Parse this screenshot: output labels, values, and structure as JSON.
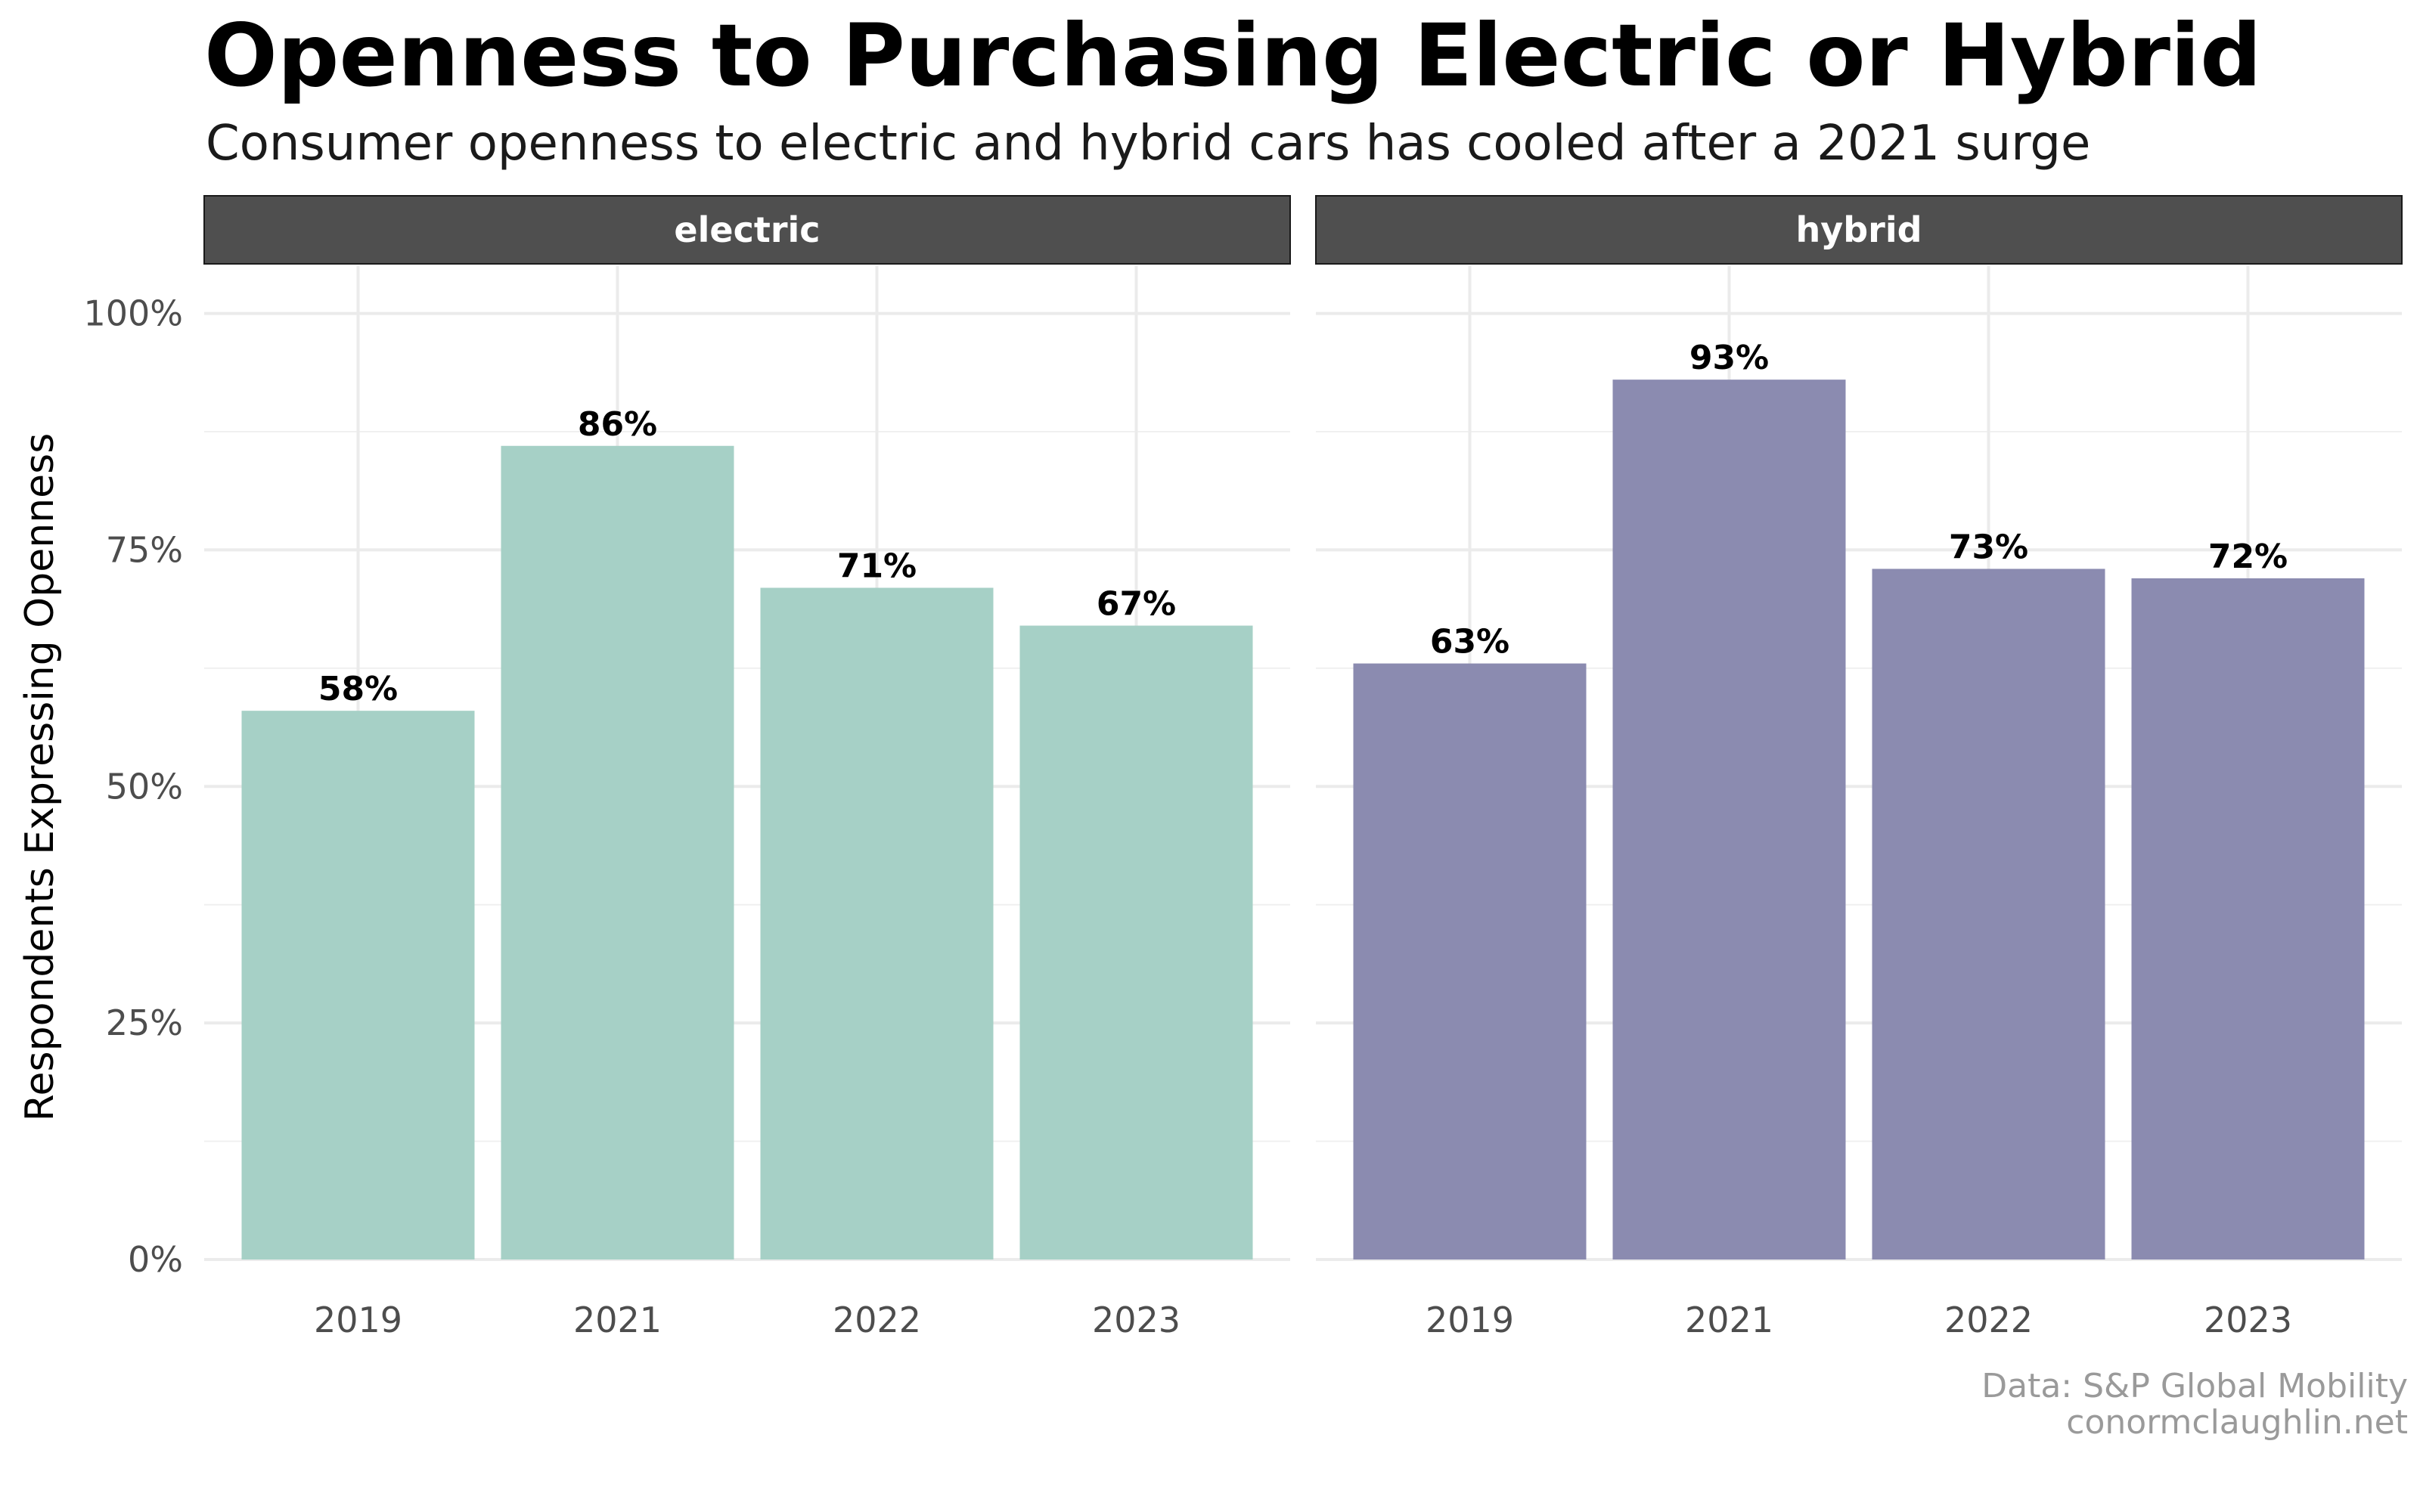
{
  "chart_data": {
    "type": "bar",
    "title": "Openness to Purchasing Electric or Hybrid",
    "subtitle": "Consumer openness to electric and hybrid cars has cooled after a 2021 surge",
    "xlabel": "",
    "ylabel": "Respondents Expressing Openness",
    "ylim": [
      0,
      1.05
    ],
    "yticks": [
      0,
      0.25,
      0.5,
      0.75,
      1.0
    ],
    "ytick_labels": [
      "0%",
      "25%",
      "50%",
      "75%",
      "100%"
    ],
    "grid": true,
    "categories": [
      "2019",
      "2021",
      "2022",
      "2023"
    ],
    "panels": [
      {
        "name": "electric",
        "color": "#a6d0c6",
        "values": [
          0.58,
          0.86,
          0.71,
          0.67
        ],
        "labels": [
          "58%",
          "86%",
          "71%",
          "67%"
        ]
      },
      {
        "name": "hybrid",
        "color": "#8b8bb0",
        "values": [
          0.63,
          0.93,
          0.73,
          0.72
        ],
        "labels": [
          "63%",
          "93%",
          "73%",
          "72%"
        ]
      }
    ],
    "strip_color": "#4f4f4f",
    "caption_lines": [
      "Data: S&P Global Mobility",
      "conormclaughlin.net"
    ]
  }
}
